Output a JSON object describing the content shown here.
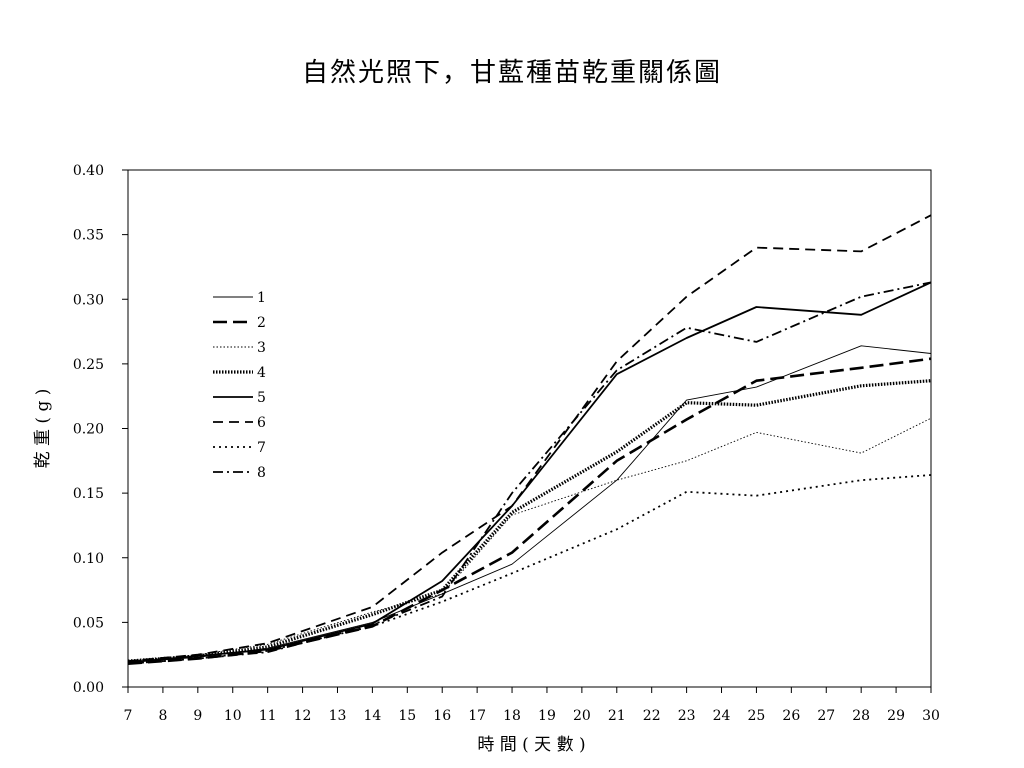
{
  "chart_data": {
    "type": "line",
    "title": "自然光照下，甘藍種苗乾重關係圖",
    "xlabel": "時 間 ( 天 數 )",
    "ylabel": "乾 重 ( g )",
    "xlim": [
      7,
      30
    ],
    "ylim": [
      0,
      0.4
    ],
    "x_ticks": [
      7,
      8,
      9,
      10,
      11,
      12,
      13,
      14,
      15,
      16,
      17,
      18,
      19,
      20,
      21,
      22,
      23,
      24,
      25,
      26,
      27,
      28,
      29,
      30
    ],
    "y_ticks": [
      "0.00",
      "0.05",
      "0.10",
      "0.15",
      "0.20",
      "0.25",
      "0.30",
      "0.35",
      "0.40"
    ],
    "legend_position": "left",
    "grid": false,
    "x": [
      7,
      9,
      11,
      14,
      16,
      18,
      21,
      23,
      25,
      28,
      30
    ],
    "series": [
      {
        "name": "1",
        "style": "thin-solid",
        "values": [
          0.019,
          0.023,
          0.03,
          0.05,
          0.072,
          0.095,
          0.16,
          0.222,
          0.232,
          0.264,
          0.258
        ]
      },
      {
        "name": "2",
        "style": "thick-dash",
        "values": [
          0.018,
          0.022,
          0.028,
          0.047,
          0.075,
          0.104,
          0.175,
          0.207,
          0.237,
          0.247,
          0.254
        ]
      },
      {
        "name": "3",
        "style": "thin-dotted",
        "values": [
          0.02,
          0.025,
          0.033,
          0.058,
          0.072,
          0.133,
          0.16,
          0.175,
          0.197,
          0.181,
          0.208
        ]
      },
      {
        "name": "4",
        "style": "thick-dotted",
        "values": [
          0.02,
          0.024,
          0.031,
          0.056,
          0.075,
          0.135,
          0.182,
          0.22,
          0.218,
          0.233,
          0.237
        ]
      },
      {
        "name": "5",
        "style": "solid",
        "values": [
          0.019,
          0.024,
          0.029,
          0.049,
          0.082,
          0.14,
          0.242,
          0.27,
          0.294,
          0.288,
          0.313
        ]
      },
      {
        "name": "6",
        "style": "dashed",
        "values": [
          0.02,
          0.025,
          0.034,
          0.062,
          0.104,
          0.14,
          0.252,
          0.302,
          0.34,
          0.337,
          0.365
        ]
      },
      {
        "name": "7",
        "style": "dotted",
        "values": [
          0.018,
          0.022,
          0.028,
          0.047,
          0.066,
          0.088,
          0.122,
          0.151,
          0.148,
          0.16,
          0.164
        ]
      },
      {
        "name": "8",
        "style": "dash-dot",
        "values": [
          0.018,
          0.022,
          0.027,
          0.048,
          0.07,
          0.15,
          0.245,
          0.278,
          0.267,
          0.302,
          0.313
        ]
      }
    ]
  }
}
